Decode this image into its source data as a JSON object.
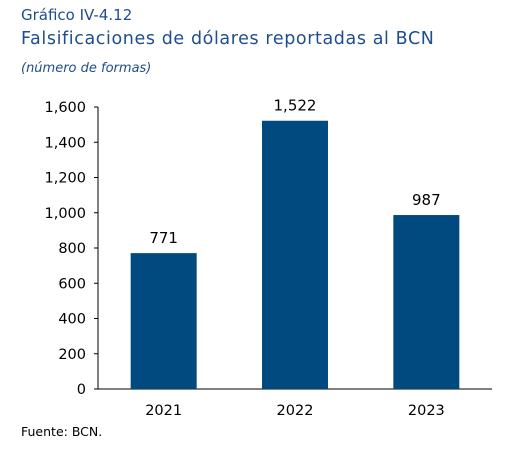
{
  "figure": {
    "number": "Gráfico IV-4.12",
    "title": "Falsificaciones de dólares reportadas al BCN",
    "subtitle": "(número de formas)",
    "source": "Fuente: BCN."
  },
  "colors": {
    "bar": "#004a80",
    "title": "#1f4e8c"
  },
  "chart_data": {
    "type": "bar",
    "title": "Falsificaciones de dólares reportadas al BCN",
    "subtitle": "(número de formas)",
    "categories": [
      "2021",
      "2022",
      "2023"
    ],
    "values": [
      771,
      1522,
      987
    ],
    "data_labels": [
      "771",
      "1,522",
      "987"
    ],
    "ylim": [
      0,
      1600
    ],
    "yticks": [
      0,
      200,
      400,
      600,
      800,
      1000,
      1200,
      1400,
      1600
    ],
    "ytick_labels": [
      "0",
      "200",
      "400",
      "600",
      "800",
      "1,000",
      "1,200",
      "1,400",
      "1,600"
    ],
    "grid": false,
    "legend": "none"
  }
}
